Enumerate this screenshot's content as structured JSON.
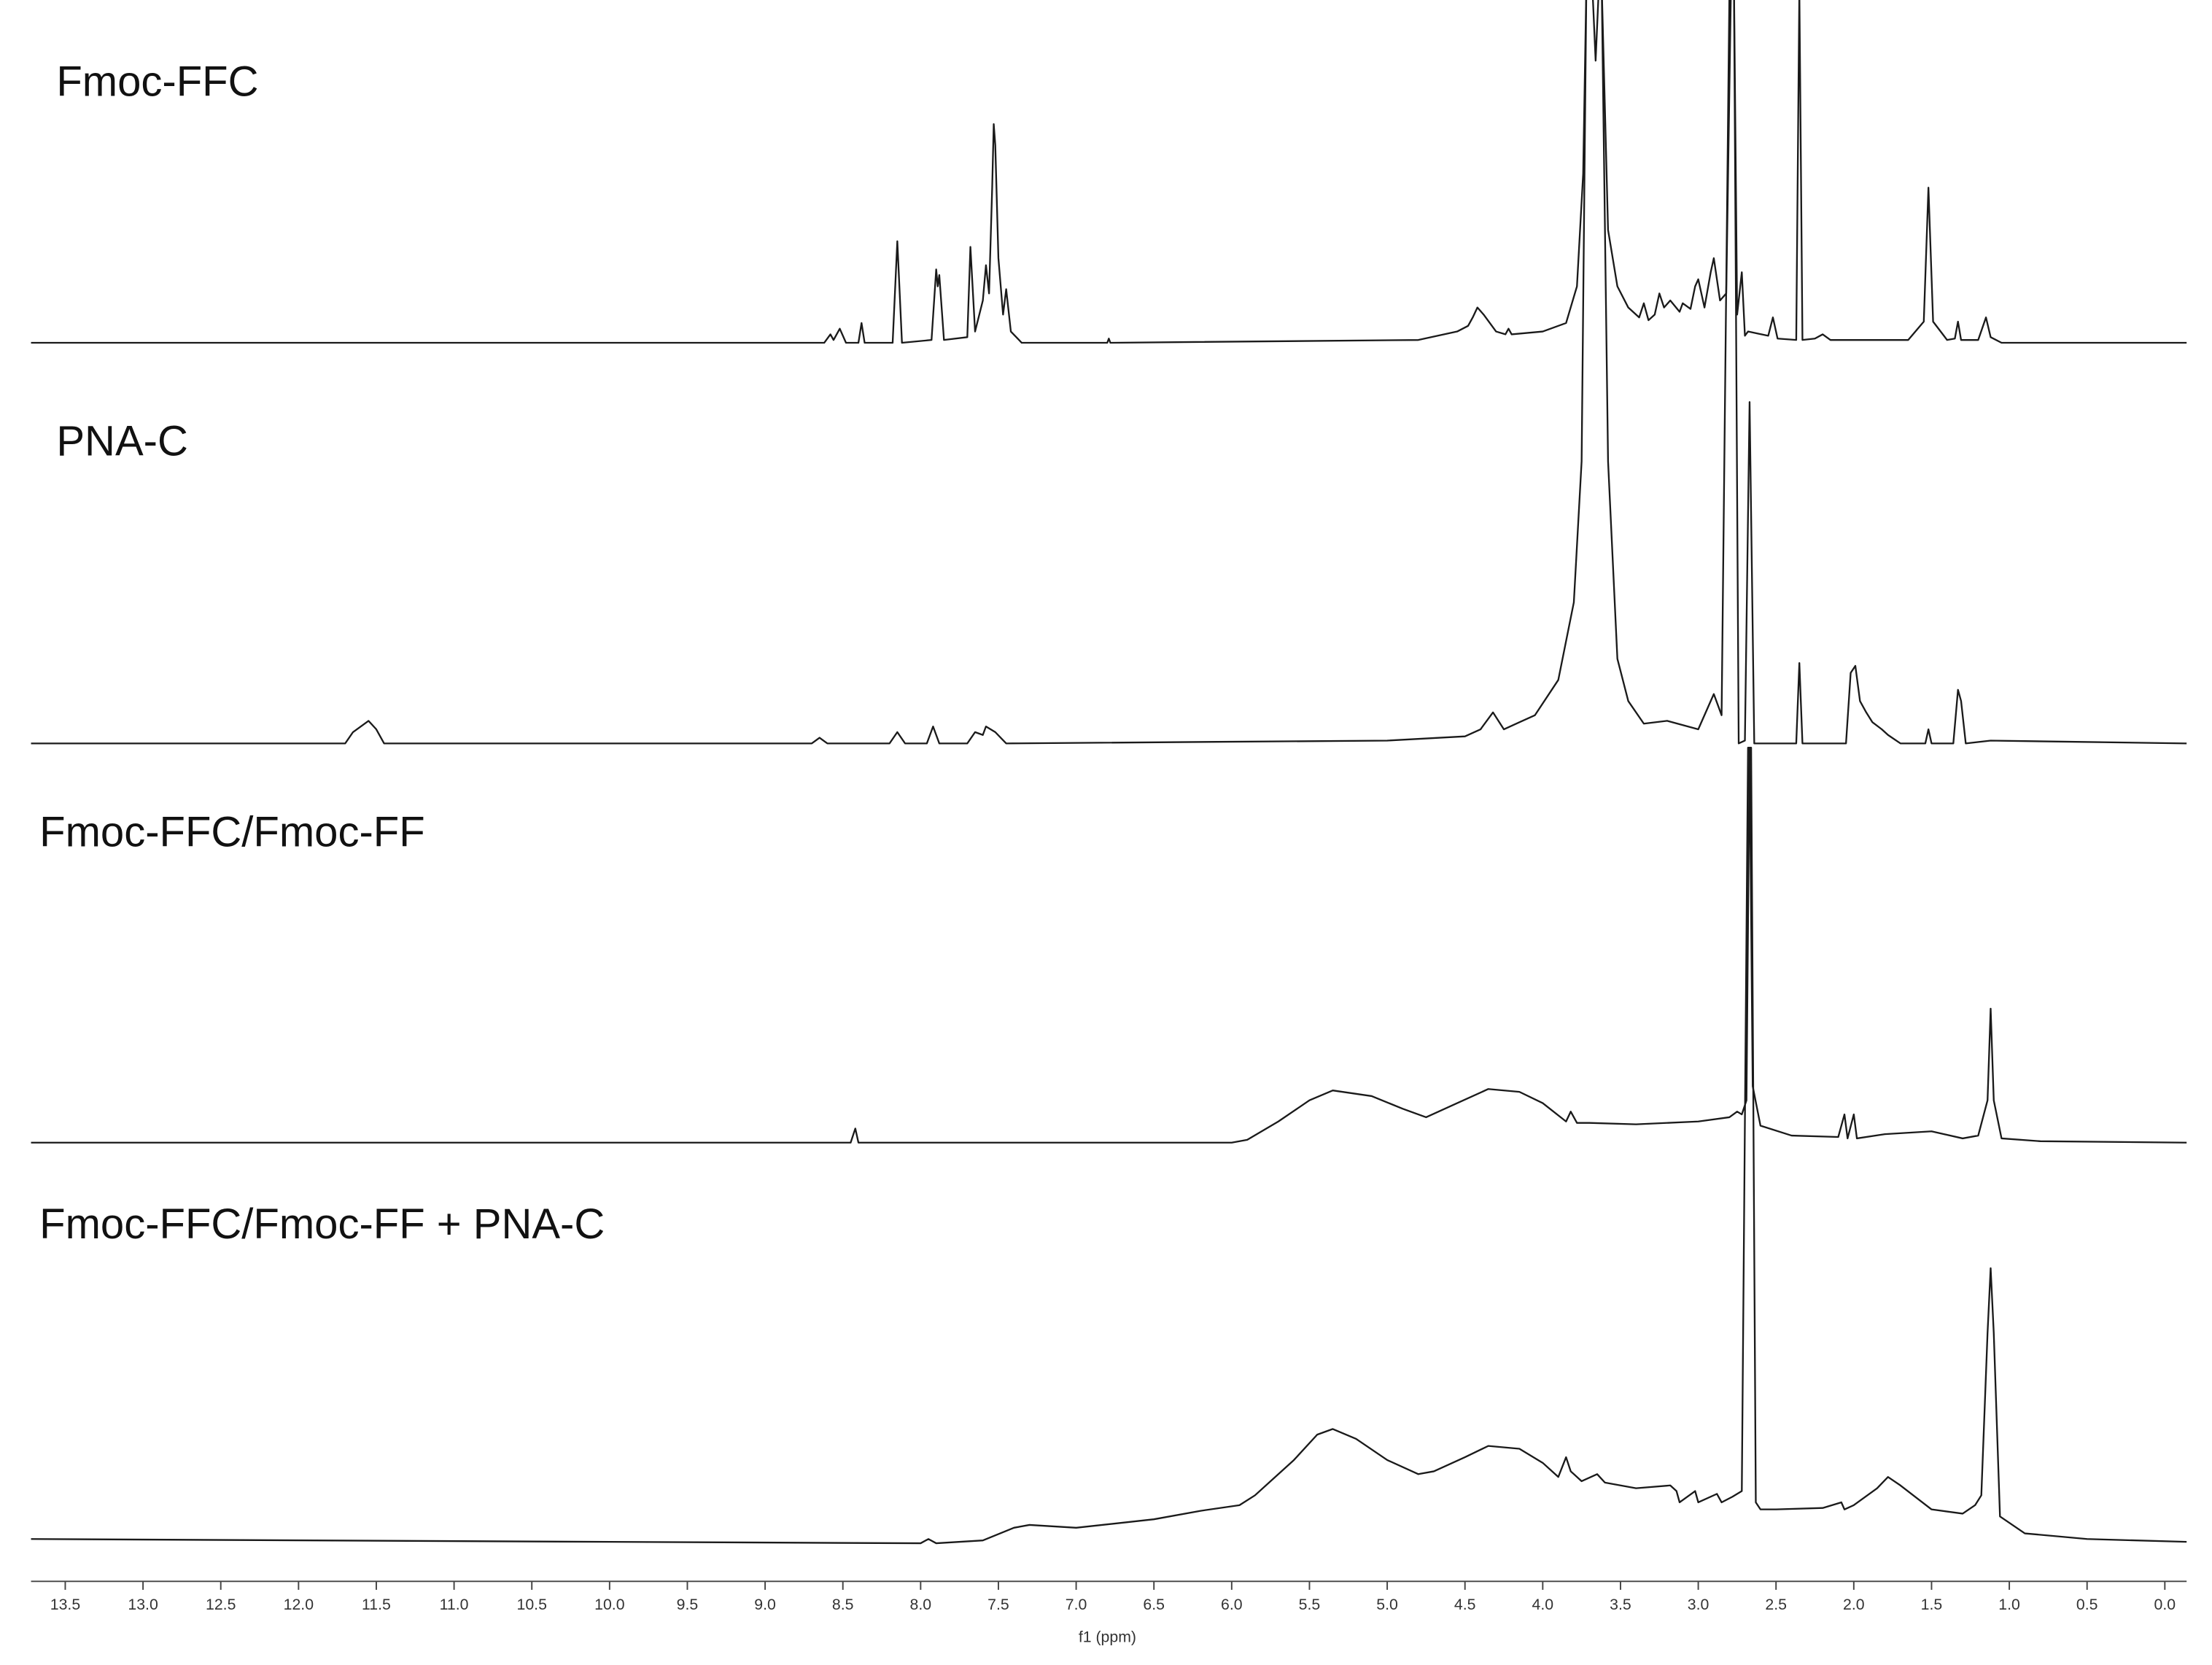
{
  "chart_data": {
    "type": "line",
    "x_label": "f1 (ppm)",
    "xlim": [
      13.72,
      -0.14
    ],
    "xticks": [
      13.5,
      {
        "value": 13,
        "label": "13.0"
      },
      12.5,
      {
        "value": 12,
        "label": "12.0"
      },
      11.5,
      {
        "value": 11,
        "label": "11.0"
      },
      10.5,
      {
        "value": 10,
        "label": "10.0"
      },
      9.5,
      {
        "value": 9,
        "label": "9.0"
      },
      8.5,
      {
        "value": 8,
        "label": "8.0"
      },
      7.5,
      {
        "value": 7,
        "label": "7.0"
      },
      6.5,
      {
        "value": 6,
        "label": "6.0"
      },
      5.5,
      {
        "value": 5,
        "label": "5.0"
      },
      4.5,
      {
        "value": 4,
        "label": "4.0"
      },
      3.5,
      {
        "value": 3,
        "label": "3.0"
      },
      2.5,
      {
        "value": 2,
        "label": "2.0"
      },
      1.5,
      {
        "value": 1,
        "label": "1.0"
      },
      0.5,
      {
        "value": 0,
        "label": "0.0"
      }
    ],
    "series": [
      {
        "name": "Fmoc-FFC",
        "color": "#1a1a1a",
        "x": [
          13.72,
          8.62,
          8.58,
          8.56,
          8.52,
          8.48,
          8.4,
          8.38,
          8.36,
          8.18,
          8.15,
          8.12,
          7.93,
          7.9,
          7.89,
          7.88,
          7.85,
          7.7,
          7.68,
          7.65,
          7.6,
          7.58,
          7.56,
          7.54,
          7.53,
          7.52,
          7.5,
          7.47,
          7.45,
          7.42,
          7.35,
          6.8,
          6.79,
          6.78,
          4.8,
          4.55,
          4.48,
          4.45,
          4.42,
          4.38,
          4.3,
          4.24,
          4.22,
          4.2,
          4.0,
          3.85,
          3.78,
          3.74,
          3.72,
          3.68,
          3.66,
          3.64,
          3.62,
          3.58,
          3.52,
          3.45,
          3.38,
          3.35,
          3.32,
          3.28,
          3.25,
          3.22,
          3.18,
          3.12,
          3.1,
          3.05,
          3.02,
          3.0,
          2.96,
          2.92,
          2.9,
          2.86,
          2.82,
          2.79,
          2.77,
          2.75,
          2.72,
          2.7,
          2.68,
          2.55,
          2.52,
          2.49,
          2.37,
          2.35,
          2.33,
          2.25,
          2.2,
          2.15,
          1.65,
          1.55,
          1.52,
          1.49,
          1.4,
          1.35,
          1.33,
          1.31,
          1.2,
          1.15,
          1.12,
          1.05,
          -0.14
        ],
        "values": [
          0,
          0,
          6,
          2,
          10,
          0,
          0,
          14,
          0,
          0,
          72,
          0,
          2,
          52,
          40,
          48,
          2,
          4,
          68,
          8,
          30,
          55,
          35,
          110,
          155,
          140,
          60,
          20,
          38,
          8,
          0,
          0,
          3,
          0,
          2,
          8,
          12,
          18,
          25,
          20,
          8,
          6,
          10,
          6,
          8,
          14,
          40,
          120,
          250,
          250,
          200,
          250,
          250,
          80,
          40,
          25,
          18,
          28,
          16,
          20,
          35,
          25,
          30,
          22,
          28,
          24,
          40,
          45,
          25,
          50,
          60,
          30,
          35,
          250,
          250,
          20,
          50,
          5,
          8,
          5,
          18,
          3,
          2,
          250,
          2,
          3,
          6,
          2,
          2,
          15,
          110,
          15,
          2,
          3,
          15,
          2,
          2,
          18,
          4,
          0,
          0
        ]
      },
      {
        "name": "PNA-C",
        "color": "#1a1a1a",
        "x": [
          13.72,
          11.7,
          11.65,
          11.6,
          11.55,
          11.5,
          11.45,
          8.7,
          8.65,
          8.6,
          8.2,
          8.15,
          8.1,
          7.96,
          7.92,
          7.88,
          7.7,
          7.65,
          7.6,
          7.58,
          7.52,
          7.45,
          5.0,
          4.5,
          4.4,
          4.32,
          4.25,
          4.15,
          4.05,
          3.9,
          3.8,
          3.75,
          3.72,
          3.62,
          3.58,
          3.52,
          3.45,
          3.35,
          3.2,
          3.0,
          2.9,
          2.85,
          2.8,
          2.77,
          2.74,
          2.7,
          2.67,
          2.64,
          2.37,
          2.35,
          2.33,
          2.05,
          2.02,
          1.99,
          1.96,
          1.92,
          1.88,
          1.82,
          1.78,
          1.7,
          1.54,
          1.52,
          1.5,
          1.36,
          1.33,
          1.31,
          1.28,
          1.12,
          -0.14
        ],
        "values": [
          0,
          0,
          8,
          12,
          16,
          10,
          0,
          0,
          4,
          0,
          0,
          8,
          0,
          0,
          12,
          0,
          0,
          8,
          6,
          12,
          8,
          0,
          2,
          5,
          10,
          22,
          10,
          15,
          20,
          45,
          100,
          200,
          530,
          530,
          200,
          60,
          30,
          14,
          16,
          10,
          35,
          20,
          530,
          530,
          0,
          2,
          242,
          0,
          0,
          57,
          0,
          0,
          50,
          55,
          30,
          22,
          15,
          10,
          6,
          0,
          0,
          10,
          0,
          0,
          38,
          30,
          0,
          2,
          0
        ]
      },
      {
        "name": "Fmoc-FFC/Fmoc-FF",
        "color": "#1a1a1a",
        "x": [
          13.72,
          8.45,
          8.42,
          8.4,
          6.0,
          5.9,
          5.7,
          5.5,
          5.35,
          5.1,
          4.9,
          4.75,
          4.55,
          4.35,
          4.15,
          4.0,
          3.85,
          3.82,
          3.78,
          3.7,
          3.4,
          3.0,
          2.8,
          2.75,
          2.72,
          2.69,
          2.67,
          2.65,
          2.6,
          2.4,
          2.1,
          2.06,
          2.04,
          2.0,
          1.98,
          1.8,
          1.5,
          1.3,
          1.2,
          1.14,
          1.12,
          1.1,
          1.05,
          0.8,
          -0.14
        ],
        "values": [
          0,
          0,
          10,
          0,
          0,
          2,
          15,
          30,
          37,
          33,
          24,
          18,
          28,
          38,
          36,
          28,
          15,
          22,
          14,
          14,
          13,
          15,
          18,
          22,
          20,
          30,
          280,
          40,
          12,
          5,
          4,
          20,
          3,
          20,
          3,
          6,
          8,
          3,
          5,
          30,
          95,
          30,
          3,
          1,
          0
        ]
      },
      {
        "name": "Fmoc-FFC/Fmoc-FF + PNA-C",
        "color": "#1a1a1a",
        "x": [
          13.72,
          10.0,
          8.0,
          7.95,
          7.9,
          7.6,
          7.4,
          7.3,
          7.0,
          6.5,
          6.2,
          5.95,
          5.85,
          5.6,
          5.45,
          5.35,
          5.2,
          5.0,
          4.8,
          4.7,
          4.5,
          4.35,
          4.15,
          4.0,
          3.9,
          3.85,
          3.82,
          3.75,
          3.65,
          3.6,
          3.4,
          3.18,
          3.14,
          3.12,
          3.02,
          3.0,
          2.88,
          2.85,
          2.78,
          2.72,
          2.68,
          2.66,
          2.63,
          2.6,
          2.5,
          2.2,
          2.08,
          2.06,
          2.0,
          1.85,
          1.78,
          1.7,
          1.5,
          1.3,
          1.22,
          1.18,
          1.14,
          1.12,
          1.1,
          1.06,
          0.9,
          0.5,
          -0.14
        ],
        "values": [
          4,
          2,
          1,
          4,
          1,
          3,
          12,
          14,
          12,
          18,
          24,
          28,
          35,
          60,
          78,
          82,
          75,
          60,
          50,
          52,
          62,
          70,
          68,
          58,
          48,
          62,
          52,
          45,
          50,
          44,
          40,
          42,
          38,
          30,
          38,
          30,
          36,
          30,
          34,
          38,
          565,
          565,
          30,
          25,
          25,
          26,
          30,
          25,
          28,
          40,
          48,
          42,
          25,
          22,
          28,
          35,
          150,
          196,
          150,
          20,
          8,
          4,
          2
        ]
      }
    ]
  }
}
